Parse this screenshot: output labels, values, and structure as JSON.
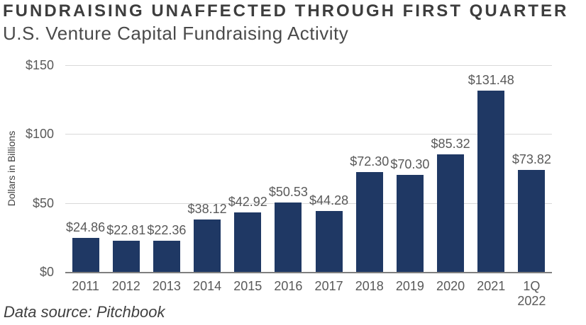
{
  "header": {
    "title": "FUNDRAISING UNAFFECTED THROUGH FIRST QUARTER",
    "subtitle": "U.S. Venture Capital Fundraising Activity"
  },
  "footer": {
    "source": "Data source: Pitchbook"
  },
  "chart_data": {
    "type": "bar",
    "title": "FUNDRAISING UNAFFECTED THROUGH FIRST QUARTER",
    "subtitle": "U.S. Venture Capital Fundraising Activity",
    "categories": [
      "2011",
      "2012",
      "2013",
      "2014",
      "2015",
      "2016",
      "2017",
      "2018",
      "2019",
      "2020",
      "2021",
      "1Q\n2022"
    ],
    "values": [
      24.86,
      22.81,
      22.36,
      38.12,
      42.92,
      50.53,
      44.28,
      72.3,
      70.3,
      85.32,
      131.48,
      73.82
    ],
    "bar_labels": [
      "$24.86",
      "$22.81",
      "$22.36",
      "$38.12",
      "$42.92",
      "$50.53",
      "$44.28",
      "$72.30",
      "$70.30",
      "$85.32",
      "$131.48",
      "$73.82"
    ],
    "xlabel": "",
    "ylabel": "Dollars in Billions",
    "ylim": [
      0,
      150
    ],
    "yticks": [
      0,
      50,
      100,
      150
    ],
    "ytick_labels": [
      "$0",
      "$50",
      "$100",
      "$150"
    ],
    "grid": true,
    "legend_position": "none",
    "colors": {
      "bar": "#1f3864",
      "gridline": "#d9d9d9",
      "axis_line": "#7f7f7f",
      "tick_label": "#595959",
      "title": "#3d3d3d"
    }
  }
}
